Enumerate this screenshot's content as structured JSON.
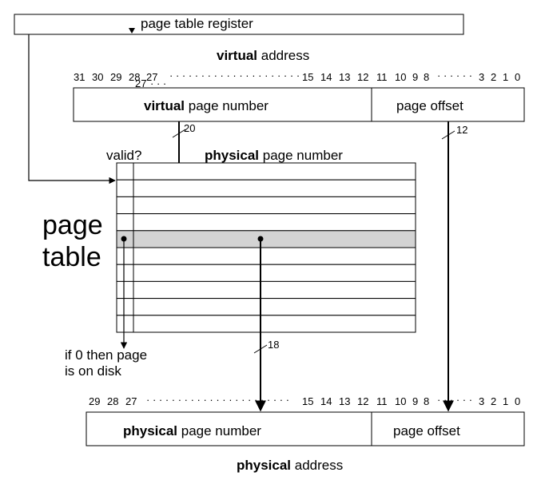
{
  "register": {
    "label": "page table register"
  },
  "virtual_address": {
    "caption_bold": "virtual",
    "caption_rest": " address",
    "bits_left": [
      "31",
      "30",
      "29",
      "28",
      "27"
    ],
    "bits_mid": [
      "15",
      "14",
      "13",
      "12",
      "11",
      "10",
      "9",
      "8"
    ],
    "bits_right": [
      "3",
      "2",
      "1",
      "0"
    ],
    "bit_extra": "27",
    "page_number_bold": "virtual",
    "page_number_rest": " page number",
    "offset_label": "page offset",
    "vpn_width": "20",
    "offset_width": "12"
  },
  "page_table": {
    "title_line1": "page",
    "title_line2": "table",
    "valid_label": "valid?",
    "ppn_header_bold": "physical",
    "ppn_header_rest": " page number",
    "row_count": 10,
    "selected_row": 4,
    "highlight_color": "#d3d3d3",
    "disk_note_line1": "if 0 then page",
    "disk_note_line2": "is on disk",
    "ppn_width": "18"
  },
  "physical_address": {
    "bits_left": [
      "29",
      "28",
      "27"
    ],
    "bits_mid": [
      "15",
      "14",
      "13",
      "12",
      "11",
      "10",
      "9",
      "8"
    ],
    "bits_right": [
      "3",
      "2",
      "1",
      "0"
    ],
    "page_number_bold": "physical",
    "page_number_rest": " page number",
    "offset_label": "page offset",
    "caption_bold": "physical",
    "caption_rest": " address"
  }
}
